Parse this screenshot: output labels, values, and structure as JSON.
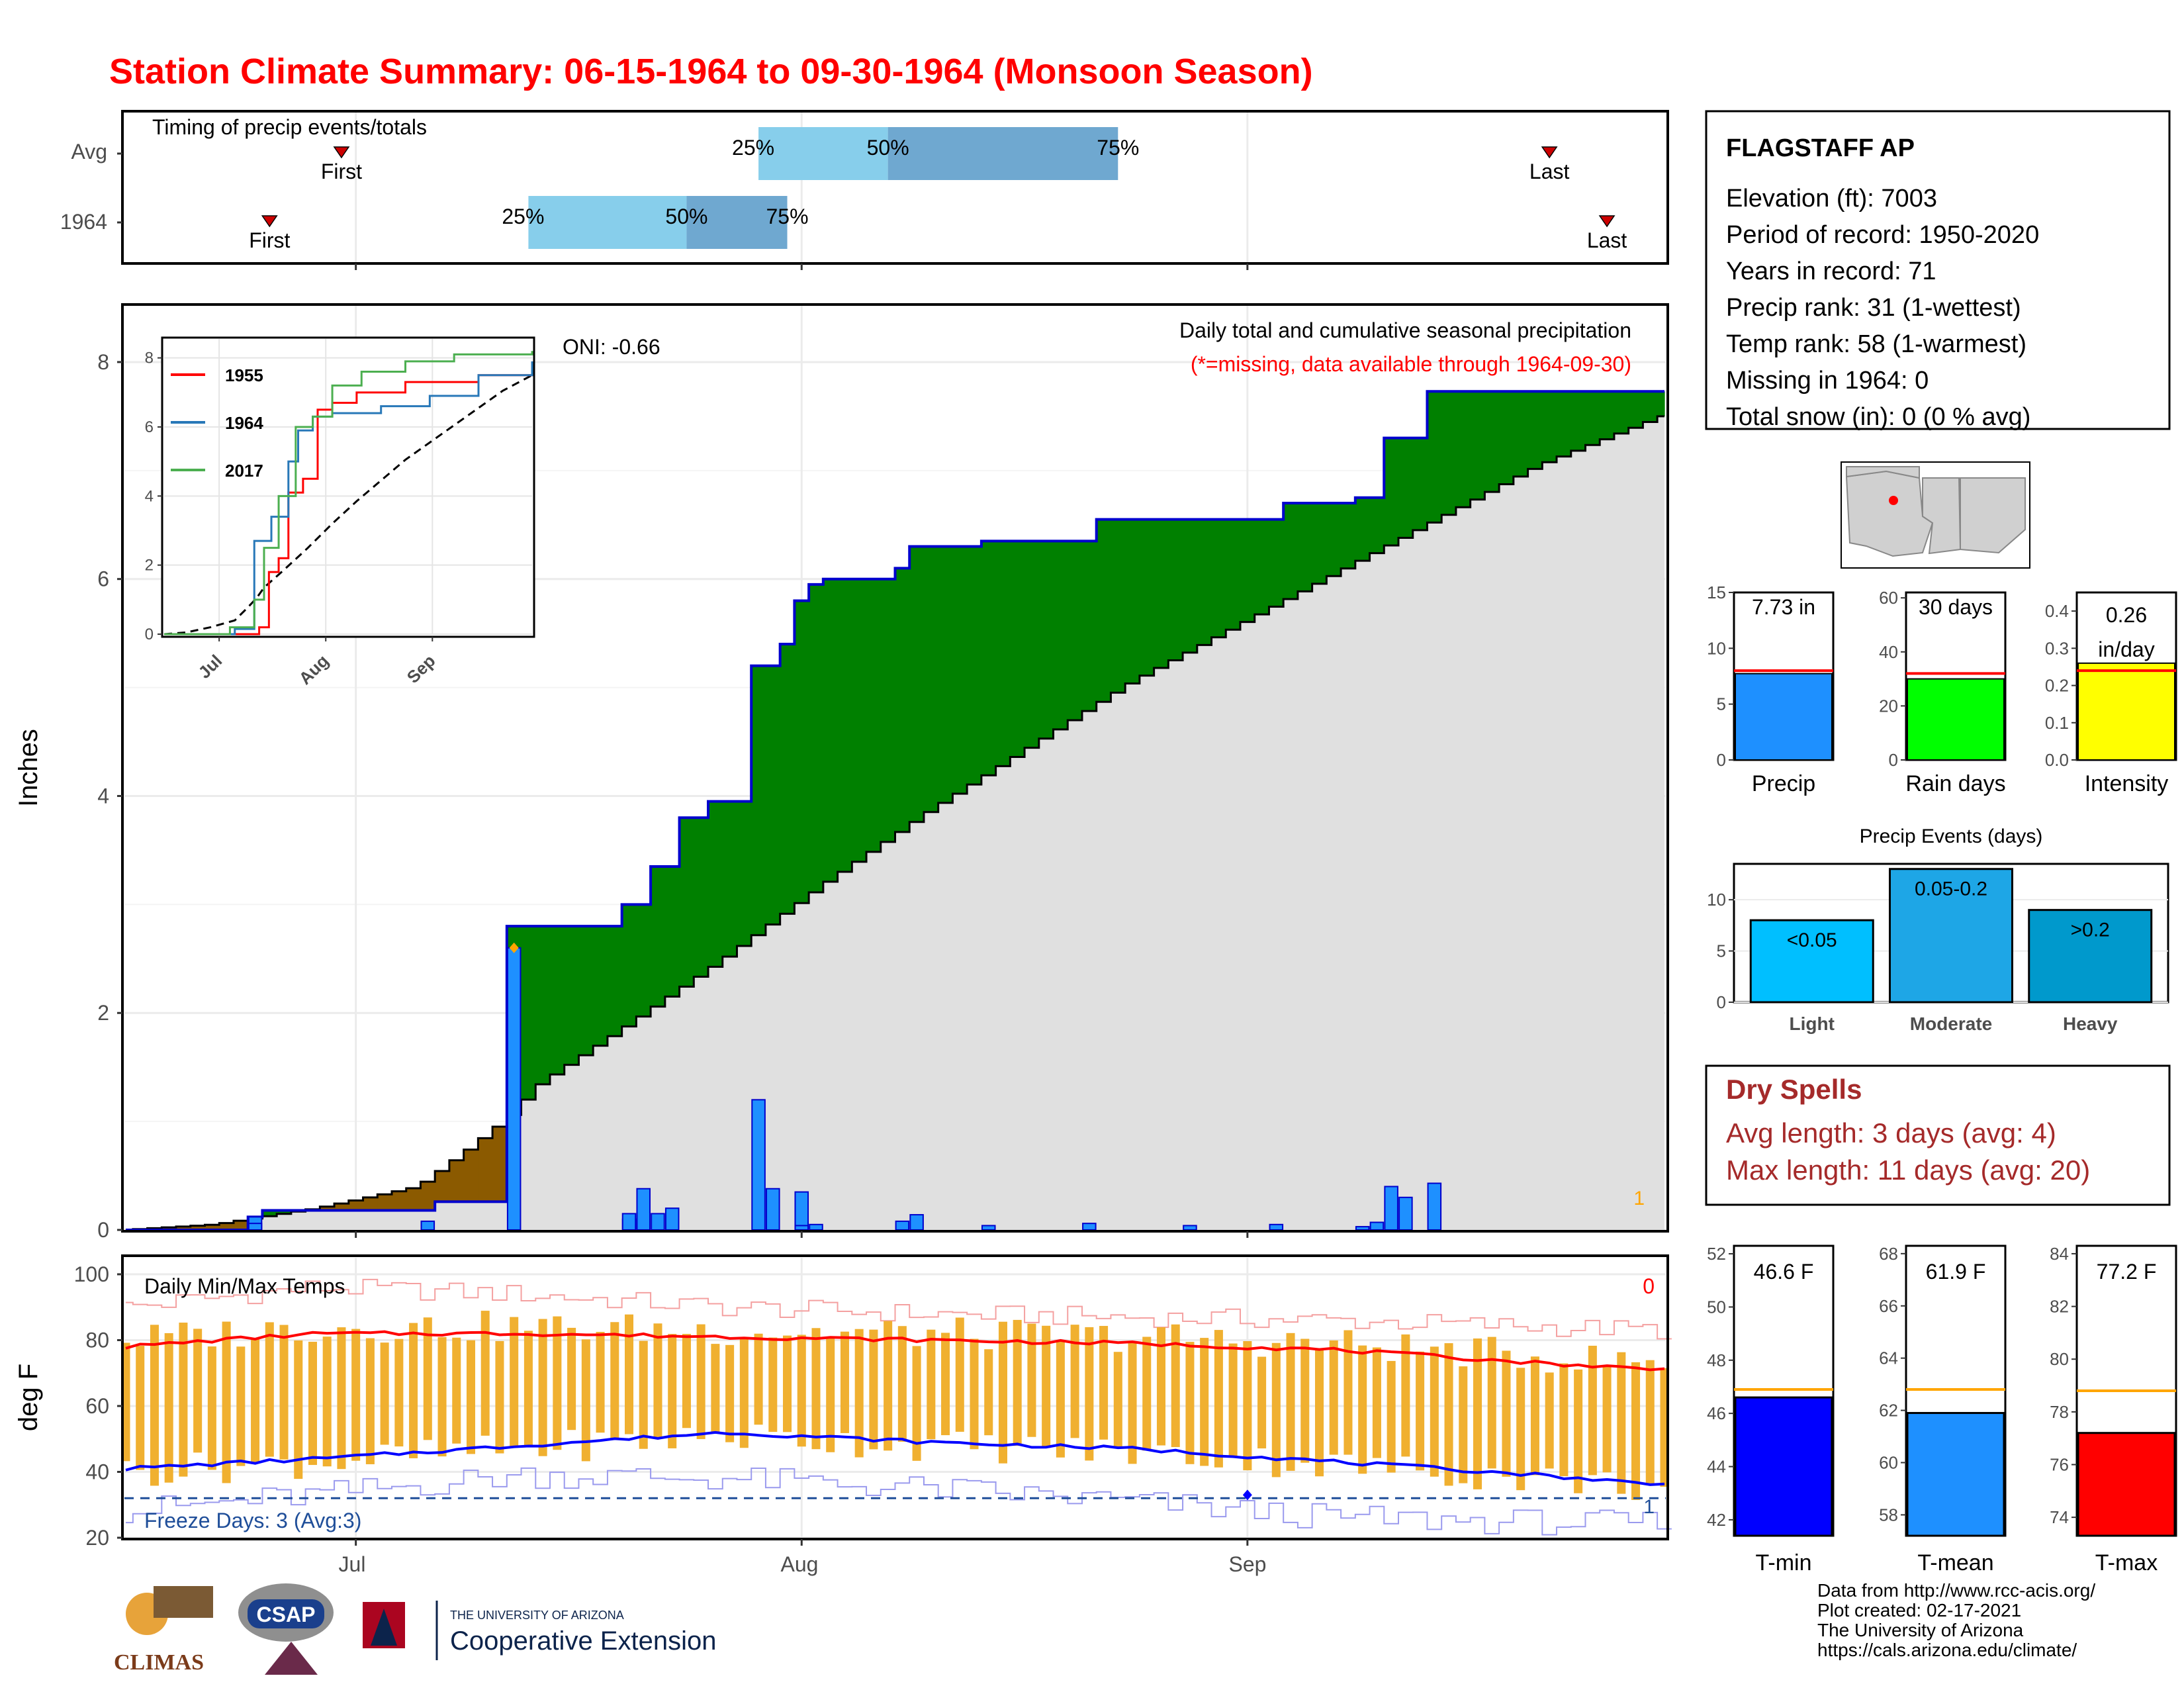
{
  "title": "Station Climate Summary: 06-15-1964 to 09-30-1964 (Monsoon Season)",
  "station": {
    "name": "FLAGSTAFF AP",
    "lines": [
      "Elevation (ft): 7003",
      "Period of record: 1950-2020",
      "Years in record: 71",
      "Precip rank: 31 (1-wettest)",
      "Temp rank: 58 (1-warmest)",
      "Missing in 1964: 0",
      "Total snow (in): 0 (0 % avg)"
    ]
  },
  "timing": {
    "title": "Timing of precip events/totals",
    "rows": [
      "Avg",
      "1964"
    ],
    "first_label": "First",
    "last_label": "Last",
    "q25": "25%",
    "q50": "50%",
    "q75": "75%"
  },
  "precip_panel": {
    "ylabel": "Inches",
    "title": "Daily total and cumulative seasonal precipitation",
    "note": "(*=missing, data available through 1964-09-30)",
    "oni": "ONI: -0.66",
    "corner_count": "1",
    "yticks": [
      "0",
      "2",
      "4",
      "6",
      "8"
    ]
  },
  "inset": {
    "legend": [
      "1955",
      "1964",
      "2017"
    ],
    "yticks": [
      "0",
      "2",
      "4",
      "6",
      "8"
    ],
    "xticks": [
      "Jul",
      "Aug",
      "Sep"
    ]
  },
  "temp_panel": {
    "ylabel": "deg F",
    "title": "Daily Min/Max Temps",
    "freeze": "Freeze Days: 3 (Avg:3)",
    "top_count": "0",
    "bottom_count": "1",
    "yticks": [
      "20",
      "40",
      "60",
      "80",
      "100"
    ],
    "xticks": [
      "Jul",
      "Aug",
      "Sep"
    ]
  },
  "bars_small": {
    "precip": {
      "label": "Precip",
      "value_text": "7.73 in",
      "yticks": [
        "0",
        "5",
        "10",
        "15"
      ]
    },
    "raindays": {
      "label": "Rain days",
      "value_text": "30 days",
      "yticks": [
        "0",
        "20",
        "40",
        "60"
      ]
    },
    "intensity": {
      "label": "Intensity",
      "value_text_1": "0.26",
      "value_text_2": "in/day",
      "yticks": [
        "0.0",
        "0.1",
        "0.2",
        "0.3",
        "0.4"
      ]
    }
  },
  "events": {
    "title": "Precip Events (days)",
    "categories": [
      "Light",
      "Moderate",
      "Heavy"
    ],
    "labels": [
      "<0.05",
      "0.05-0.2",
      ">0.2"
    ],
    "yticks": [
      "0",
      "5",
      "10"
    ]
  },
  "dry_spells": {
    "title": "Dry Spells",
    "avg_line": "Avg length: 3 days (avg: 4)",
    "max_line": "Max length: 11 days (avg: 20)"
  },
  "temp_bars": {
    "tmin": {
      "label": "T-min",
      "value_text": "46.6 F",
      "yticks": [
        "42",
        "44",
        "46",
        "48",
        "50",
        "52"
      ]
    },
    "tmean": {
      "label": "T-mean",
      "value_text": "61.9 F",
      "yticks": [
        "58",
        "60",
        "62",
        "64",
        "66",
        "68"
      ]
    },
    "tmax": {
      "label": "T-max",
      "value_text": "77.2 F",
      "yticks": [
        "74",
        "76",
        "78",
        "80",
        "82",
        "84"
      ]
    }
  },
  "footer": [
    "Data from http://www.rcc-acis.org/",
    "Plot created: 02-17-2021",
    "The University of Arizona",
    "https://cals.arizona.edu/climate/"
  ],
  "logos": {
    "climas": "CLIMAS",
    "csap": "CSAP",
    "ua_line1": "THE UNIVERSITY OF ARIZONA",
    "ua_line2": "Cooperative Extension"
  },
  "colors": {
    "title_red": "#ff0000",
    "wet_green": "#008000",
    "dry_brown": "#8b5a00",
    "avg_grey": "#e0e0e0",
    "daily_blue": "#1e90ff",
    "line_blue": "#0000cd",
    "orange_bar": "#f0b030",
    "tmax_red": "#ff0000",
    "tmin_blue": "#0000ff",
    "dry_spell_red": "#a52a2a"
  },
  "chart_data": [
    {
      "type": "bar",
      "name": "timing",
      "x_domain": [
        "06-15",
        "09-30"
      ],
      "rows": [
        {
          "row": "Avg",
          "first": "06-30",
          "q25": "07-29",
          "q50": "08-07",
          "q75": "08-23",
          "last": "09-22"
        },
        {
          "row": "1964",
          "first": "06-25",
          "q25": "07-13",
          "q50": "07-24",
          "q75": "07-31",
          "last": "09-26"
        }
      ]
    },
    {
      "type": "area",
      "name": "cumulative precipitation 1964 vs average",
      "x_start": "1964-06-15",
      "ylim": [
        0,
        8.5
      ],
      "cumulative_1964": [
        [
          1,
          0
        ],
        [
          12,
          0.0
        ],
        [
          13,
          0.12
        ],
        [
          14,
          0.18
        ],
        [
          30,
          0.18
        ],
        [
          31,
          0.26
        ],
        [
          38,
          0.26
        ],
        [
          39,
          2.8
        ],
        [
          49,
          2.8
        ],
        [
          50,
          3.0
        ],
        [
          52,
          3.15
        ],
        [
          53,
          3.35
        ],
        [
          55,
          3.6
        ],
        [
          56,
          3.8
        ],
        [
          58,
          3.95
        ],
        [
          62,
          3.95
        ],
        [
          63,
          5.2
        ],
        [
          65,
          5.4
        ],
        [
          67,
          5.8
        ],
        [
          68,
          5.95
        ],
        [
          69,
          6.0
        ],
        [
          76,
          6.0
        ],
        [
          77,
          6.1
        ],
        [
          78,
          6.3
        ],
        [
          84,
          6.3
        ],
        [
          85,
          6.35
        ],
        [
          95,
          6.35
        ],
        [
          96,
          6.55
        ],
        [
          113,
          6.55
        ],
        [
          114,
          6.7
        ],
        [
          121,
          6.72
        ],
        [
          122,
          6.75
        ],
        [
          124,
          6.9
        ],
        [
          125,
          7.3
        ],
        [
          128,
          7.3
        ],
        [
          129,
          7.73
        ]
      ],
      "cumulative_avg": [
        [
          1,
          0
        ],
        [
          10,
          0.05
        ],
        [
          20,
          0.2
        ],
        [
          30,
          0.4
        ],
        [
          35,
          0.75
        ],
        [
          39,
          1.05
        ],
        [
          42,
          1.35
        ],
        [
          50,
          1.85
        ],
        [
          60,
          2.5
        ],
        [
          70,
          3.2
        ],
        [
          80,
          3.85
        ],
        [
          90,
          4.45
        ],
        [
          100,
          5.05
        ],
        [
          110,
          5.55
        ],
        [
          120,
          6.05
        ],
        [
          130,
          6.55
        ],
        [
          140,
          7.05
        ],
        [
          152,
          7.5
        ]
      ],
      "daily_1964": [
        [
          13,
          0.12
        ],
        [
          14,
          0.06
        ],
        [
          31,
          0.08
        ],
        [
          39,
          2.6
        ],
        [
          50,
          0.1
        ],
        [
          51,
          0.15
        ],
        [
          52,
          0.38
        ],
        [
          53,
          0.15
        ],
        [
          55,
          0.2
        ],
        [
          63,
          1.2
        ],
        [
          65,
          0.38
        ],
        [
          67,
          0.35
        ],
        [
          68,
          0.04
        ],
        [
          69,
          0.05
        ],
        [
          77,
          0.08
        ],
        [
          78,
          0.14
        ],
        [
          85,
          0.04
        ],
        [
          96,
          0.06
        ],
        [
          106,
          0.04
        ],
        [
          114,
          0.05
        ],
        [
          122,
          0.03
        ],
        [
          124,
          0.07
        ],
        [
          125,
          0.4
        ],
        [
          126,
          0.3
        ],
        [
          129,
          0.43
        ]
      ]
    },
    {
      "type": "line",
      "name": "inset cumulative years",
      "series": [
        {
          "name": "1955",
          "values": [
            [
              1,
              0
            ],
            [
              35,
              0
            ],
            [
              40,
              0.2
            ],
            [
              44,
              1.8
            ],
            [
              48,
              2.2
            ],
            [
              52,
              4.1
            ],
            [
              58,
              4.5
            ],
            [
              64,
              6.5
            ],
            [
              70,
              6.7
            ],
            [
              80,
              7.0
            ],
            [
              100,
              7.3
            ],
            [
              130,
              7.5
            ],
            [
              152,
              7.8
            ]
          ]
        },
        {
          "name": "1964",
          "values": [
            [
              1,
              0
            ],
            [
              30,
              0.15
            ],
            [
              38,
              2.7
            ],
            [
              45,
              3.4
            ],
            [
              52,
              5.0
            ],
            [
              56,
              5.9
            ],
            [
              62,
              6.3
            ],
            [
              70,
              6.4
            ],
            [
              90,
              6.6
            ],
            [
              110,
              6.9
            ],
            [
              130,
              7.5
            ],
            [
              152,
              7.9
            ]
          ]
        },
        {
          "name": "2017",
          "values": [
            [
              1,
              0
            ],
            [
              28,
              0.2
            ],
            [
              38,
              1.0
            ],
            [
              42,
              2.5
            ],
            [
              48,
              4.0
            ],
            [
              55,
              6.0
            ],
            [
              62,
              6.3
            ],
            [
              70,
              7.2
            ],
            [
              82,
              7.6
            ],
            [
              100,
              7.9
            ],
            [
              120,
              8.1
            ],
            [
              152,
              8.2
            ]
          ]
        }
      ],
      "ylim": [
        0,
        8.3
      ]
    },
    {
      "type": "line",
      "name": "daily temperatures",
      "ylim": [
        20,
        100
      ],
      "avg_tmax": [
        [
          1,
          78
        ],
        [
          10,
          80
        ],
        [
          20,
          82
        ],
        [
          40,
          82
        ],
        [
          60,
          81
        ],
        [
          80,
          80
        ],
        [
          100,
          79
        ],
        [
          120,
          77
        ],
        [
          140,
          73
        ],
        [
          152,
          71
        ]
      ],
      "avg_tmin": [
        [
          1,
          41
        ],
        [
          20,
          44
        ],
        [
          40,
          48
        ],
        [
          60,
          52
        ],
        [
          80,
          49
        ],
        [
          100,
          47
        ],
        [
          120,
          43
        ],
        [
          140,
          39
        ],
        [
          152,
          36
        ]
      ],
      "record_max_env": [
        [
          1,
          90
        ],
        [
          20,
          96
        ],
        [
          40,
          94
        ],
        [
          60,
          90
        ],
        [
          80,
          88
        ],
        [
          100,
          87
        ],
        [
          120,
          86
        ],
        [
          152,
          83
        ]
      ],
      "record_min_env": [
        [
          1,
          28
        ],
        [
          20,
          33
        ],
        [
          40,
          39
        ],
        [
          60,
          38
        ],
        [
          80,
          35
        ],
        [
          100,
          31
        ],
        [
          120,
          26
        ],
        [
          152,
          24
        ]
      ],
      "freeze_line": 32
    },
    {
      "type": "bar",
      "name": "season totals",
      "categories": [
        "Precip",
        "Rain days",
        "Intensity"
      ],
      "values": [
        7.73,
        30,
        0.26
      ],
      "averages": [
        8.0,
        32,
        0.24
      ]
    },
    {
      "type": "bar",
      "name": "Precip Events (days)",
      "categories": [
        "Light",
        "Moderate",
        "Heavy"
      ],
      "values": [
        8,
        13,
        9
      ],
      "ylim": [
        0,
        13.5
      ]
    },
    {
      "type": "bar",
      "name": "season temperatures",
      "categories": [
        "T-min",
        "T-mean",
        "T-max"
      ],
      "values": [
        46.6,
        61.9,
        77.2
      ],
      "averages": [
        46.9,
        62.8,
        78.8
      ]
    }
  ]
}
